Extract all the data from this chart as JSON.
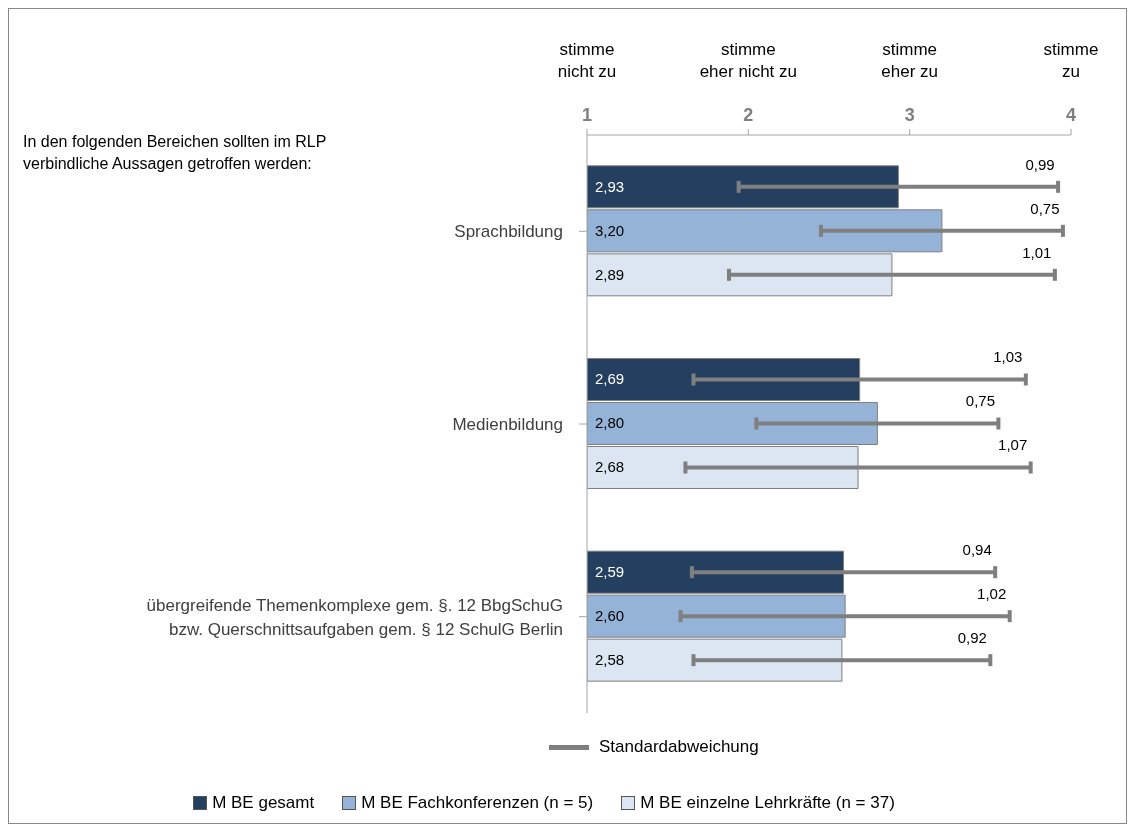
{
  "chart_data": {
    "type": "bar",
    "orientation": "horizontal",
    "title": "In den folgenden Bereichen sollten im RLP verbindliche Aussagen getroffen werden:",
    "categories": [
      "Sprachbildung",
      "Medienbildung",
      "übergreifende Themenkomplexe gem. §. 12 BbgSchuG bzw. Querschnittsaufgaben gem. § 12 SchulG Berlin"
    ],
    "series": [
      {
        "name": "M BE gesamt",
        "color": "#243f60",
        "values": [
          2.93,
          2.69,
          2.59
        ],
        "value_labels": [
          "2,93",
          "2,69",
          "2,59"
        ],
        "errors": [
          0.99,
          1.03,
          0.94
        ]
      },
      {
        "name": "M BE Fachkonferenzen (n = 5)",
        "color": "#95b3d7",
        "values": [
          3.2,
          2.8,
          2.6
        ],
        "value_labels": [
          "3,20",
          "2,80",
          "2,60"
        ],
        "errors": [
          0.75,
          0.75,
          1.02
        ]
      },
      {
        "name": "M BE einzelne Lehrkräfte (n = 37)",
        "color": "#dce6f2",
        "values": [
          2.89,
          2.68,
          2.58
        ],
        "value_labels": [
          "2,89",
          "2,68",
          "2,58"
        ],
        "errors": [
          1.01,
          1.07,
          0.92
        ]
      }
    ],
    "xlim": [
      1,
      4
    ],
    "xticks": [
      1,
      2,
      3,
      4
    ],
    "legend": "bottom",
    "grid": false,
    "annotations": [
      "0,99",
      "0,75",
      "1,01",
      "1,03",
      "0,75",
      "1,07",
      "0,94",
      "1,02",
      "0,92",
      "stimme nicht zu",
      "stimme eher nicht zu",
      "stimme eher zu",
      "stimme zu",
      "Standardabweichung"
    ]
  }
}
